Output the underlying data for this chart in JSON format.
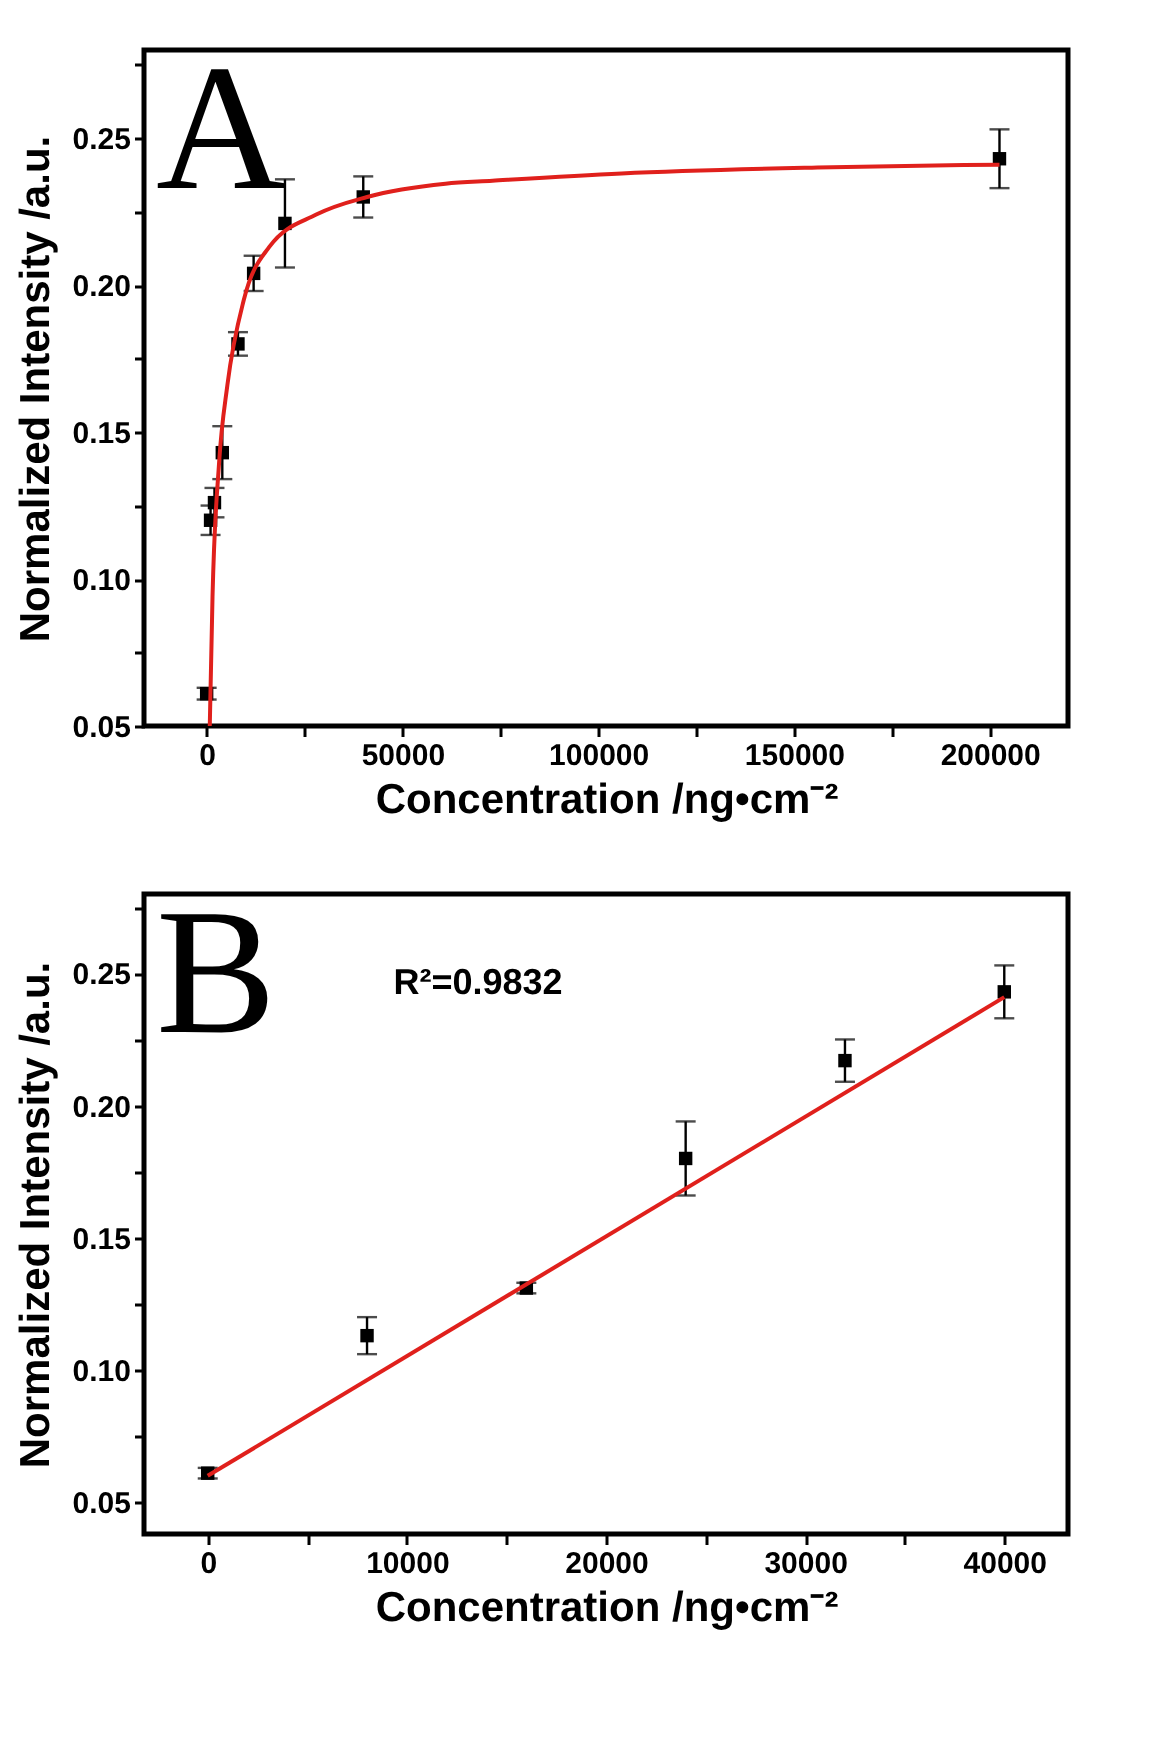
{
  "chart_data": [
    {
      "type": "scatter",
      "xlabel": "Concentration /ng•cm⁻²",
      "ylabel": "Normalized Intensity /a.u.",
      "xlim": [
        -16000,
        220000
      ],
      "ylim": [
        0.05,
        0.28
      ],
      "xticks": [
        0,
        {
          "value": 25000,
          "label": null
        },
        50000,
        {
          "value": 75000,
          "label": null
        },
        100000,
        {
          "value": 125000,
          "label": null
        },
        150000,
        {
          "value": 175000,
          "label": null
        },
        200000
      ],
      "yticks": [
        {
          "value": 0.05,
          "label": "0.05"
        },
        {
          "value": 0.075,
          "label": null
        },
        {
          "value": 0.1,
          "label": "0.10"
        },
        {
          "value": 0.125,
          "label": null
        },
        {
          "value": 0.15,
          "label": "0.15"
        },
        {
          "value": 0.175,
          "label": null
        },
        {
          "value": 0.2,
          "label": "0.20"
        },
        {
          "value": 0.225,
          "label": null
        },
        {
          "value": 0.25,
          "label": "0.25"
        },
        {
          "value": 0.275,
          "label": null
        }
      ],
      "grid": false,
      "annotations": [
        "A"
      ],
      "series": [
        {
          "marker": "square",
          "color": "#000000",
          "x": [
            0,
            1000,
            2000,
            4000,
            8000,
            12000,
            20000,
            40000,
            202500
          ],
          "values": [
            0.061,
            0.12,
            0.126,
            0.143,
            0.18,
            0.204,
            0.221,
            0.23,
            0.243
          ],
          "errors": [
            0.002,
            0.005,
            0.005,
            0.009,
            0.004,
            0.006,
            0.015,
            0.007,
            0.01
          ]
        },
        {
          "type": "line",
          "line_style": "solid",
          "color": "#e0201c",
          "x": [
            800,
            1500,
            3150,
            5300,
            9500,
            16000,
            28000,
            41000,
            61000,
            73000,
            106000,
            156000,
            202500
          ],
          "values": [
            0.05,
            0.094,
            0.139,
            0.166,
            0.195,
            0.213,
            0.224,
            0.23,
            0.2345,
            0.2355,
            0.238,
            0.24,
            0.241
          ]
        }
      ]
    },
    {
      "type": "scatter",
      "xlabel": "Concentration /ng•cm⁻²",
      "ylabel": "Normalized Intensity /a.u.",
      "xlim": [
        -3200,
        43200
      ],
      "ylim": [
        0.038,
        0.28
      ],
      "xticks": [
        0,
        {
          "value": 5000,
          "label": null
        },
        10000,
        {
          "value": 15000,
          "label": null
        },
        20000,
        {
          "value": 25000,
          "label": null
        },
        30000,
        {
          "value": 35000,
          "label": null
        },
        40000
      ],
      "yticks": [
        {
          "value": 0.05,
          "label": "0.05"
        },
        {
          "value": 0.075,
          "label": null
        },
        {
          "value": 0.1,
          "label": "0.10"
        },
        {
          "value": 0.125,
          "label": null
        },
        {
          "value": 0.15,
          "label": "0.15"
        },
        {
          "value": 0.175,
          "label": null
        },
        {
          "value": 0.2,
          "label": "0.20"
        },
        {
          "value": 0.225,
          "label": null
        },
        {
          "value": 0.25,
          "label": "0.25"
        },
        {
          "value": 0.275,
          "label": null
        }
      ],
      "grid": false,
      "annotations": [
        "B",
        "R²=0.9832"
      ],
      "series": [
        {
          "marker": "square",
          "color": "#000000",
          "x": [
            0,
            8000,
            16000,
            24000,
            32000,
            40000
          ],
          "values": [
            0.061,
            0.113,
            0.131,
            0.18,
            0.217,
            0.243
          ],
          "errors": [
            0.002,
            0.007,
            0.002,
            0.014,
            0.008,
            0.01
          ]
        },
        {
          "type": "line",
          "line_style": "solid",
          "color": "#e0201c",
          "x": [
            0,
            40000
          ],
          "values": [
            0.06,
            0.241
          ]
        }
      ]
    }
  ]
}
